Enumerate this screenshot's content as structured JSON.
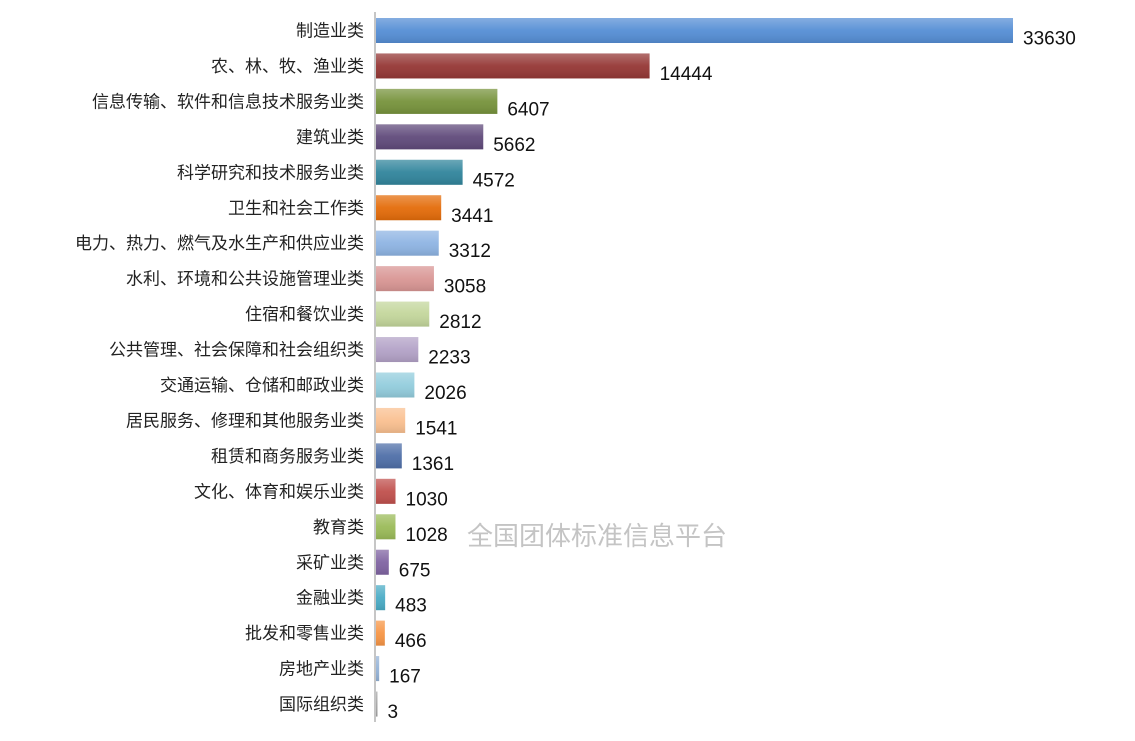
{
  "watermark": "全国团体标准信息平台",
  "chart_data": {
    "type": "bar",
    "orientation": "horizontal",
    "title": "",
    "xlabel": "",
    "ylabel": "",
    "xlim": [
      0,
      33630
    ],
    "grid": false,
    "legend": "none",
    "categories": [
      "制造业类",
      "农、林、牧、渔业类",
      "信息传输、软件和信息技术服务业类",
      "建筑业类",
      "科学研究和技术服务业类",
      "卫生和社会工作类",
      "电力、热力、燃气及水生产和供应业类",
      "水利、环境和公共设施管理业类",
      "住宿和餐饮业类",
      "公共管理、社会保障和社会组织类",
      "交通运输、仓储和邮政业类",
      "居民服务、修理和其他服务业类",
      "租赁和商务服务业类",
      "文化、体育和娱乐业类",
      "教育类",
      "采矿业类",
      "金融业类",
      "批发和零售业类",
      "房地产业类",
      "国际组织类"
    ],
    "values": [
      33630,
      14444,
      6407,
      5662,
      4572,
      3441,
      3312,
      3058,
      2812,
      2233,
      2026,
      1541,
      1361,
      1030,
      1028,
      675,
      483,
      466,
      167,
      3
    ],
    "colors": [
      "#558ed5",
      "#953735",
      "#77933c",
      "#604a7b",
      "#31859c",
      "#e46c0a",
      "#8eb4e3",
      "#d99694",
      "#c3d69b",
      "#b3a2c7",
      "#93cddd",
      "#fac090",
      "#4f6fa8",
      "#c0504d",
      "#9bbb59",
      "#8064a2",
      "#4bacc6",
      "#f79646",
      "#95b3d7",
      "#a5a5a5"
    ]
  }
}
